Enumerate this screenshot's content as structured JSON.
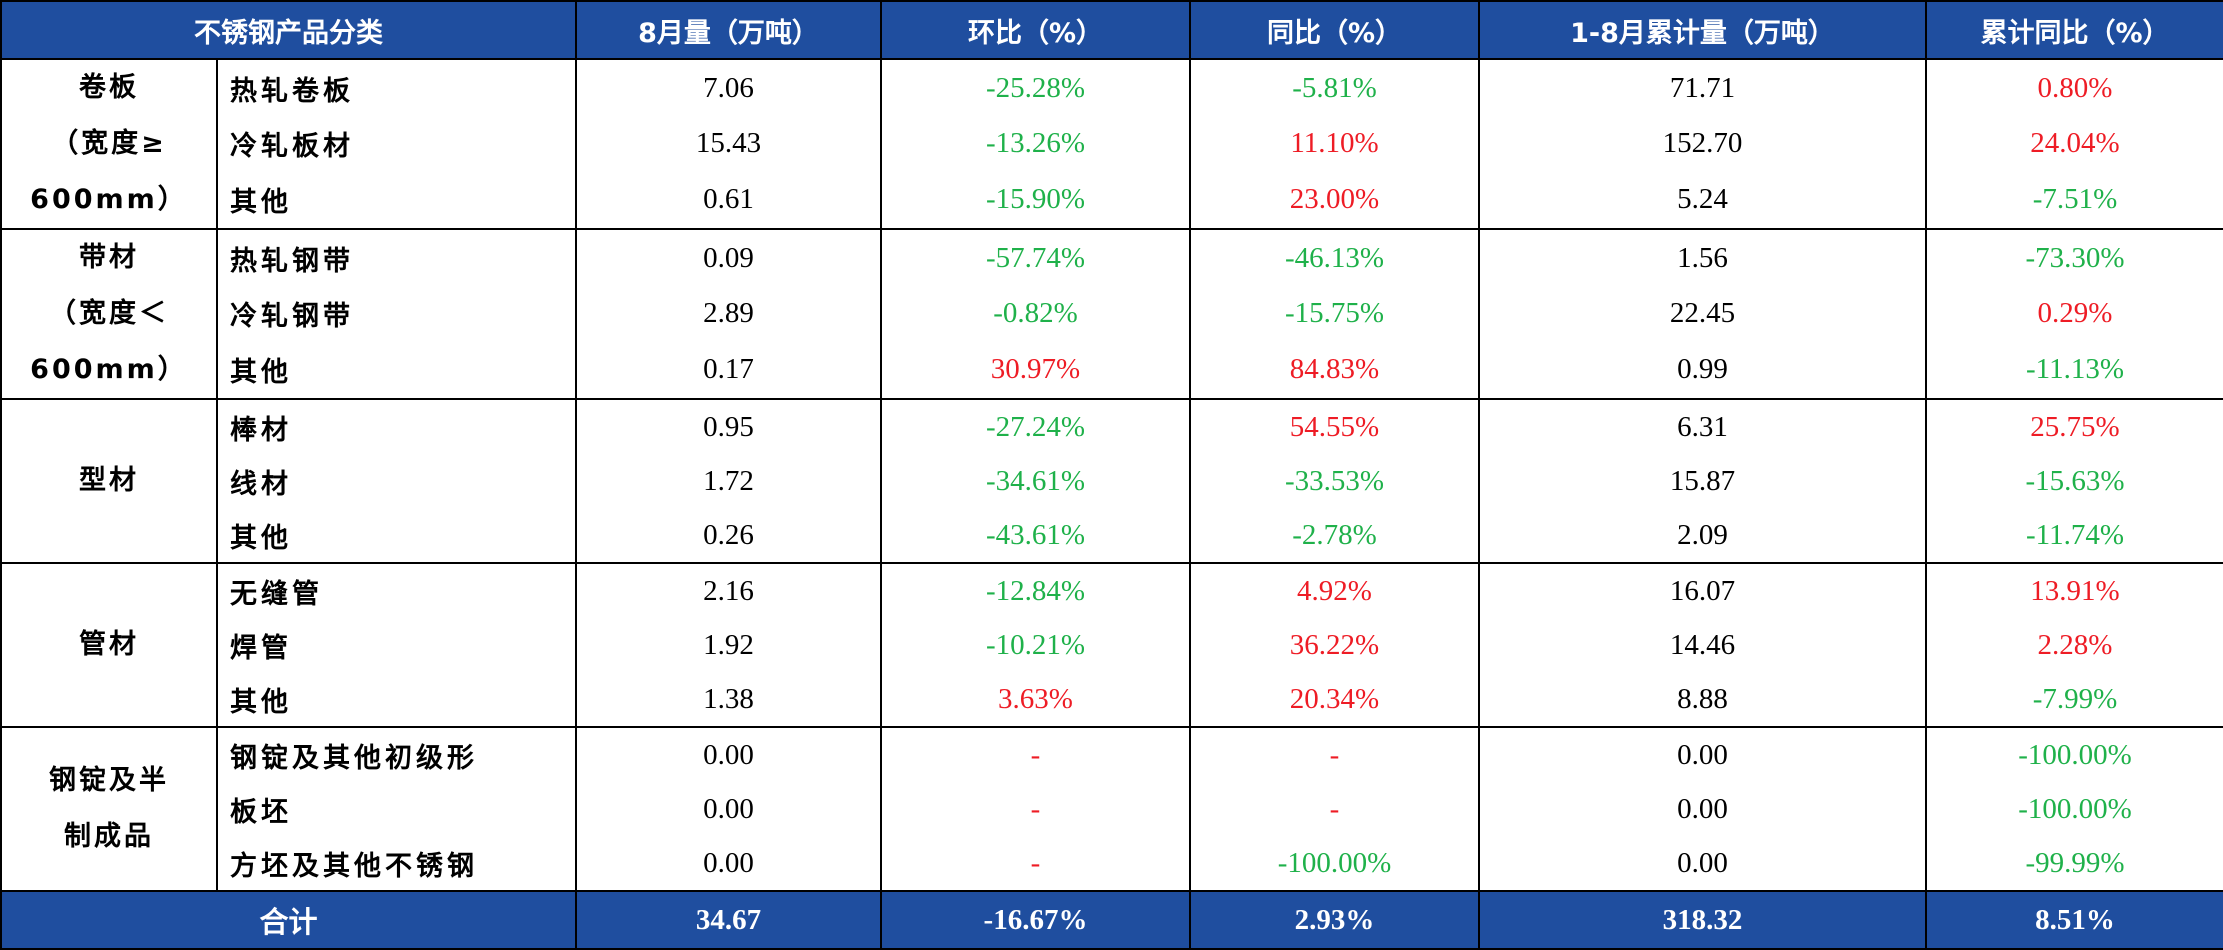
{
  "table": {
    "colors": {
      "positive": "#ee1c25",
      "negative": "#1fb14a",
      "header_bg": "#1f4e9f"
    },
    "header": [
      "不锈钢产品分类",
      "8月量（万吨）",
      "环比（%）",
      "同比（%）",
      "1-8月累计量（万吨）",
      "累计同比（%）"
    ],
    "groups": [
      {
        "label_lines": [
          "卷板",
          "（宽度≥",
          "600mm）"
        ],
        "rows": [
          [
            "热轧卷板",
            "7.06",
            "-25.28%",
            "-5.81%",
            "71.71",
            "0.80%"
          ],
          [
            "冷轧板材",
            "15.43",
            "-13.26%",
            "11.10%",
            "152.70",
            "24.04%"
          ],
          [
            "其他",
            "0.61",
            "-15.90%",
            "23.00%",
            "5.24",
            "-7.51%"
          ]
        ]
      },
      {
        "label_lines": [
          "带材",
          "（宽度＜",
          "600mm）"
        ],
        "rows": [
          [
            "热轧钢带",
            "0.09",
            "-57.74%",
            "-46.13%",
            "1.56",
            "-73.30%"
          ],
          [
            "冷轧钢带",
            "2.89",
            "-0.82%",
            "-15.75%",
            "22.45",
            "0.29%"
          ],
          [
            "其他",
            "0.17",
            "30.97%",
            "84.83%",
            "0.99",
            "-11.13%"
          ]
        ]
      },
      {
        "label_lines": [
          "型材"
        ],
        "rows": [
          [
            "棒材",
            "0.95",
            "-27.24%",
            "54.55%",
            "6.31",
            "25.75%"
          ],
          [
            "线材",
            "1.72",
            "-34.61%",
            "-33.53%",
            "15.87",
            "-15.63%"
          ],
          [
            "其他",
            "0.26",
            "-43.61%",
            "-2.78%",
            "2.09",
            "-11.74%"
          ]
        ]
      },
      {
        "label_lines": [
          "管材"
        ],
        "rows": [
          [
            "无缝管",
            "2.16",
            "-12.84%",
            "4.92%",
            "16.07",
            "13.91%"
          ],
          [
            "焊管",
            "1.92",
            "-10.21%",
            "36.22%",
            "14.46",
            "2.28%"
          ],
          [
            "其他",
            "1.38",
            "3.63%",
            "20.34%",
            "8.88",
            "-7.99%"
          ]
        ]
      },
      {
        "label_lines": [
          "钢锭及半",
          "制成品"
        ],
        "rows": [
          [
            "钢锭及其他初级形",
            "0.00",
            "-",
            "-",
            "0.00",
            "-100.00%"
          ],
          [
            "板坯",
            "0.00",
            "-",
            "-",
            "0.00",
            "-100.00%"
          ],
          [
            "方坯及其他不锈钢",
            "0.00",
            "-",
            "-100.00%",
            "0.00",
            "-99.99%"
          ]
        ]
      }
    ],
    "total": [
      "合计",
      "34.67",
      "-16.67%",
      "2.93%",
      "318.32",
      "8.51%"
    ]
  }
}
